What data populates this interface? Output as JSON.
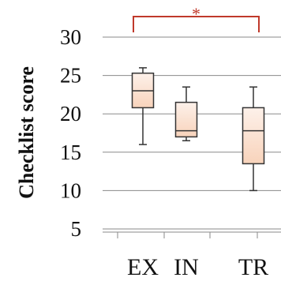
{
  "chart_data": {
    "type": "boxplot",
    "ylabel": "Checklist score",
    "ylim": [
      5,
      30
    ],
    "yticks": [
      5,
      10,
      15,
      20,
      25,
      30
    ],
    "grid": true,
    "categories": [
      "EX",
      "IN",
      "TR"
    ],
    "boxes": [
      {
        "category": "EX",
        "min": 16,
        "q1": 20.8,
        "median": 23,
        "q3": 25.3,
        "max": 26
      },
      {
        "category": "IN",
        "min": 16.5,
        "q1": 17,
        "median": 17.8,
        "q3": 21.5,
        "max": 23.5
      },
      {
        "category": "TR",
        "min": 10,
        "q1": 13.5,
        "median": 17.8,
        "q3": 20.8,
        "max": 23.5
      }
    ],
    "significance": {
      "from": "EX",
      "to": "TR",
      "label": "*",
      "color": "#c0392b"
    }
  }
}
